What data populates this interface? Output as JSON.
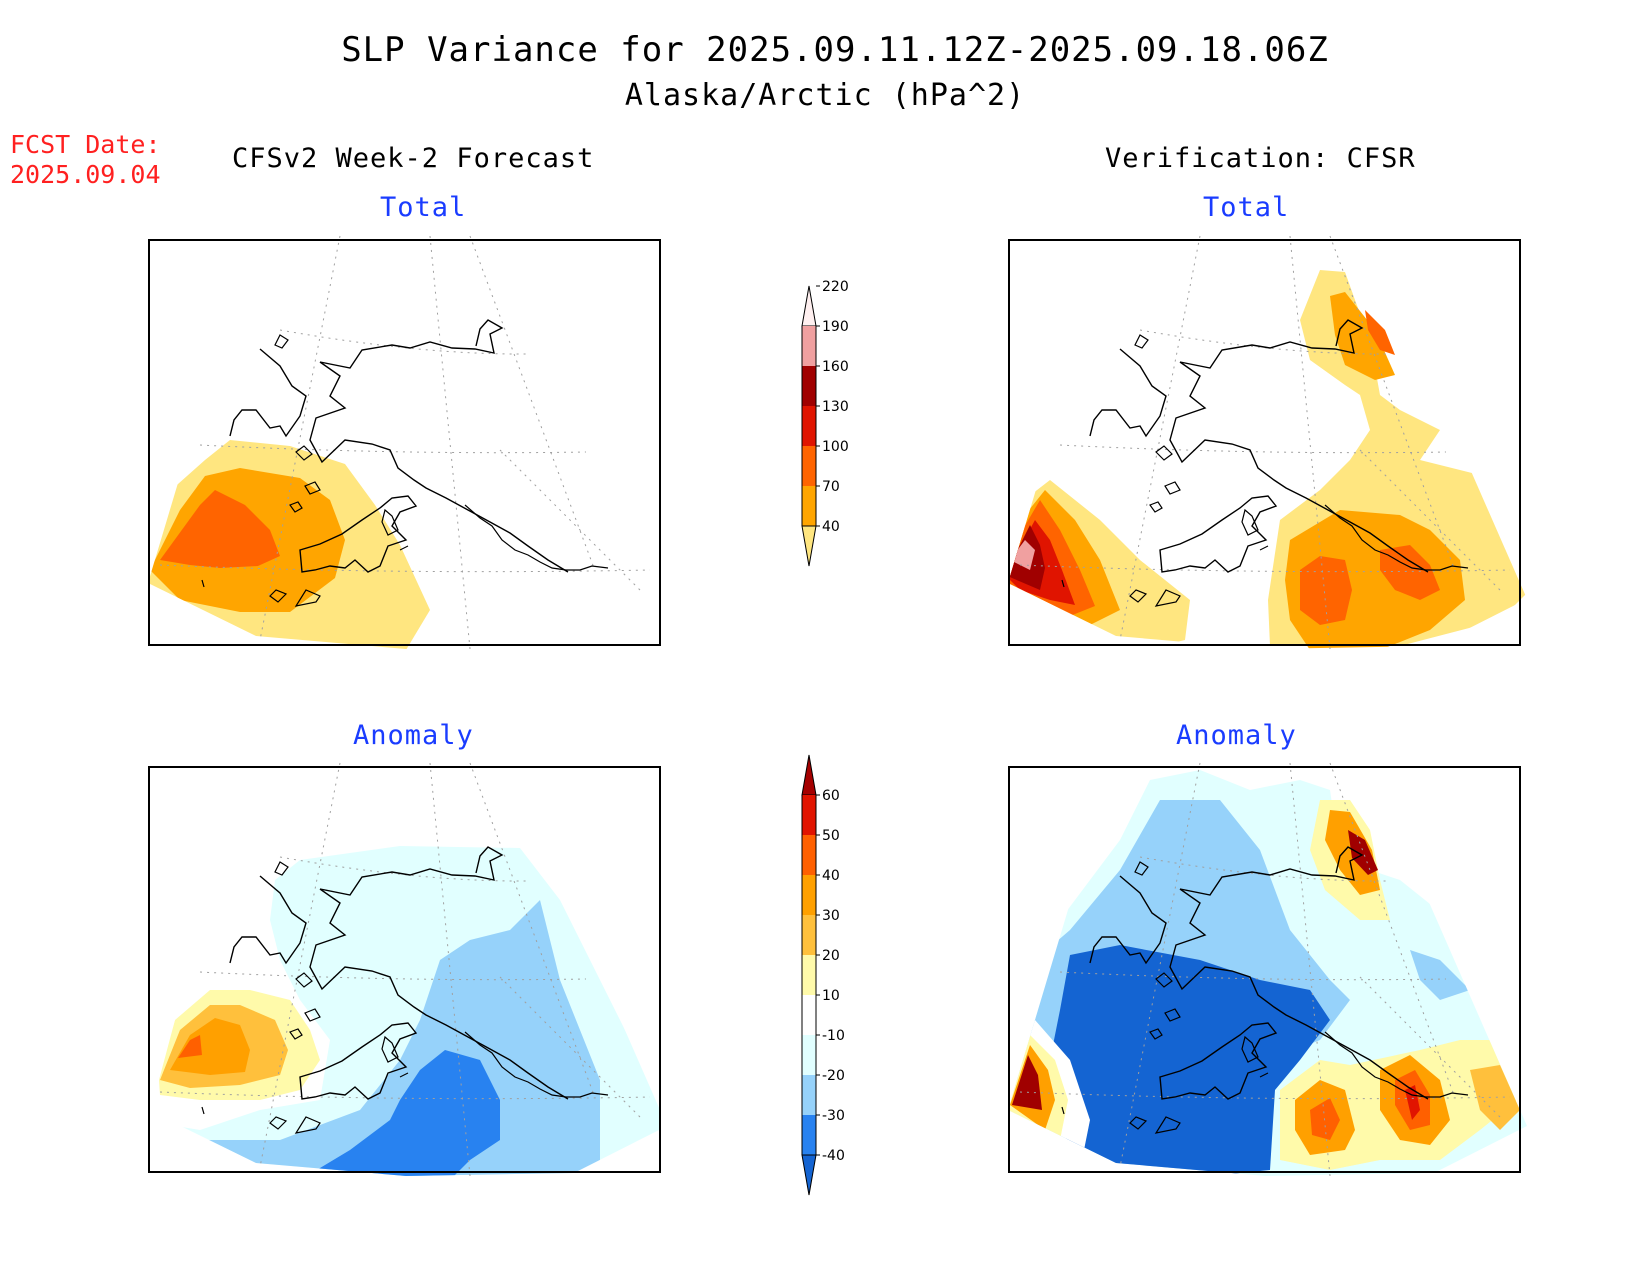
{
  "title": {
    "line1": "SLP Variance for 2025.09.11.12Z-2025.09.18.06Z",
    "line2": "Alaska/Arctic (hPa^2)"
  },
  "fcst_date": {
    "label": "FCST Date:",
    "value": "2025.09.04"
  },
  "columns": {
    "left": "CFSv2 Week-2 Forecast",
    "right": "Verification: CFSR"
  },
  "panels": {
    "top_left": "Total",
    "top_right": "Total",
    "bottom_left": "Anomaly",
    "bottom_right": "Anomaly"
  },
  "colorbars": {
    "total": {
      "labels": [
        "40",
        "70",
        "100",
        "130",
        "160",
        "190",
        "220"
      ],
      "colors": [
        "#ffe680",
        "#ffa500",
        "#ff6400",
        "#e01400",
        "#a00000",
        "#f0a0a0",
        "#fff0f0"
      ]
    },
    "anomaly": {
      "labels": [
        "-40",
        "-30",
        "-20",
        "-10",
        "10",
        "20",
        "30",
        "40",
        "50",
        "60"
      ],
      "colors": [
        "#1464d2",
        "#2882f0",
        "#96d2fa",
        "#e1ffff",
        "#ffffff",
        "#fffaaa",
        "#ffc03c",
        "#ffa000",
        "#ff6000",
        "#e11400",
        "#a50000"
      ]
    }
  },
  "colors": {
    "title_fcst": "#ff2020",
    "panel_label": "#1a3cff"
  }
}
